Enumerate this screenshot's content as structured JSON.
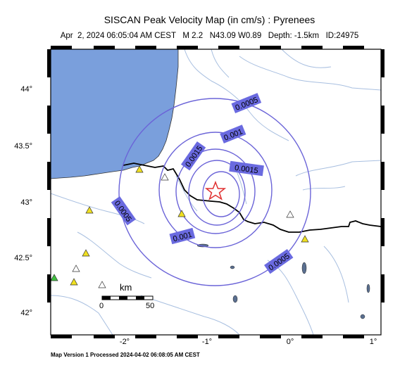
{
  "map": {
    "title": "SISCAN Peak Velocity Map (in cm/s) : Pyrenees",
    "subtitle": "Apr  2, 2024 06:05:04 AM CEST   M 2.2   N43.09 W0.89   Depth: -1.5km   ID:24975",
    "footer": "Map Version 1 Processed 2024-04-02 06:08:05 AM CEST",
    "y_ticks": [
      "44°",
      "43.5°",
      "43°",
      "42.5°",
      "42°"
    ],
    "x_ticks": [
      "-2°",
      "-1°",
      "0°",
      "1°"
    ],
    "contour_labels": [
      "0.0005",
      "0.001",
      "0.0015",
      "0.0015",
      "0.0005",
      "0.001",
      "0.0005"
    ],
    "scale": {
      "title": "km",
      "start": "0",
      "end": "50"
    },
    "colors": {
      "sea": "#7a9fdc",
      "contour": "#6b64d8",
      "label_bg": "#6a6ae0",
      "river": "#a8bfe0",
      "epicenter": "#e03030",
      "station_yellow": "#f0e020",
      "station_green": "#40c040"
    }
  }
}
